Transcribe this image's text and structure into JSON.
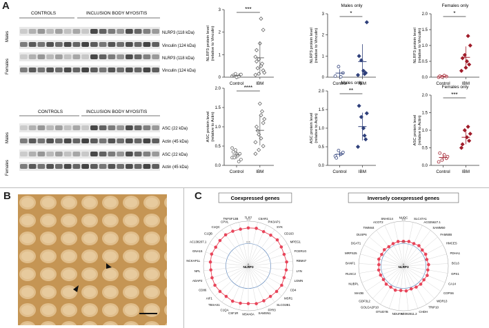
{
  "panel_letters": {
    "a": "A",
    "b": "B",
    "c": "C"
  },
  "blots": {
    "top": {
      "header_controls": "CONTROLS",
      "header_ibm": "INCLUSION BODY MYOSITIS",
      "group_males": "Males",
      "group_females": "Females",
      "bands": [
        "NLRP3 (118 kDa)",
        "Vinculin (124 kDa)",
        "NLRP3 (118 kDa)",
        "Vinculin (124 kDa)"
      ]
    },
    "bottom": {
      "header_controls": "CONTROLS",
      "header_ibm": "INCLUSION BODY MYOSITIS",
      "group_males": "Males",
      "group_females": "Females",
      "bands": [
        "ASC (22 kDa)",
        "Actin (45 kDa)",
        "ASC (22 kDa)",
        "Actin (45 kDa)"
      ]
    }
  },
  "chart_data": [
    {
      "type": "scatter",
      "title": "",
      "subtitle": "",
      "ylabel": "NLRP3 protein level\n(relative to Vinculin)",
      "categories": [
        "Control",
        "IBM"
      ],
      "ylim": [
        0,
        3
      ],
      "yticks": [
        "0",
        "1",
        "2",
        "3"
      ],
      "significance": "***",
      "color": "#666666",
      "series": [
        {
          "values": [
            0.05,
            0.1,
            0.02,
            0.15,
            0.08,
            0.12,
            0.03,
            0.0
          ]
        },
        {
          "values": [
            0.1,
            0.3,
            0.5,
            0.8,
            1.2,
            0.2,
            0.6,
            1.5,
            0.4,
            0.9,
            2.1,
            2.6,
            0.15,
            0.7
          ]
        }
      ]
    },
    {
      "type": "scatter",
      "title": "Males only",
      "subtitle": "",
      "ylabel": "NLRP3 protein level\n(relative to Vinculin)",
      "categories": [
        "Control",
        "IBM"
      ],
      "ylim": [
        0,
        3
      ],
      "yticks": [
        "0",
        "1",
        "2",
        "3"
      ],
      "significance": "*",
      "color": "#2e3f7a",
      "series": [
        {
          "values": [
            0.05,
            0.2,
            0.02,
            0.5
          ]
        },
        {
          "values": [
            0.1,
            0.2,
            0.3,
            0.8,
            1.0,
            2.6,
            0.15
          ]
        }
      ]
    },
    {
      "type": "scatter",
      "title": "Females only",
      "subtitle": "",
      "ylabel": "NLRP3 protein level\n(relative to Vinculin)",
      "categories": [
        "Control",
        "IBM"
      ],
      "ylim": [
        0,
        2
      ],
      "yticks": [
        "0.0",
        "0.5",
        "1.0",
        "1.5",
        "2.0"
      ],
      "significance": "*",
      "color": "#a01c2a",
      "series": [
        {
          "values": [
            0.0,
            0.02,
            0.05,
            0.01,
            0.03
          ]
        },
        {
          "values": [
            0.2,
            0.4,
            0.5,
            0.7,
            0.6,
            1.0,
            1.3,
            0.3
          ]
        }
      ]
    },
    {
      "type": "scatter",
      "title": "",
      "subtitle": "",
      "ylabel": "ASC protein level\n(relative to Actin)",
      "categories": [
        "Control",
        "IBM"
      ],
      "ylim": [
        0,
        2
      ],
      "yticks": [
        "0.0",
        "0.5",
        "1.0",
        "1.5",
        "2.0"
      ],
      "significance": "****",
      "color": "#666666",
      "series": [
        {
          "values": [
            0.2,
            0.3,
            0.25,
            0.4,
            0.35,
            0.15,
            0.1,
            0.3,
            0.2,
            0.45
          ]
        },
        {
          "values": [
            0.3,
            0.5,
            0.7,
            0.8,
            1.0,
            1.2,
            1.4,
            1.6,
            0.9,
            0.6,
            1.1,
            1.3,
            0.4
          ]
        }
      ]
    },
    {
      "type": "scatter",
      "title": "Males only",
      "subtitle": "",
      "ylabel": "ASC protein level\n(relative to Actin)",
      "categories": [
        "Control",
        "IBM"
      ],
      "ylim": [
        0,
        2
      ],
      "yticks": [
        "0.0",
        "0.5",
        "1.0",
        "1.5",
        "2.0"
      ],
      "significance": "**",
      "color": "#2e3f7a",
      "series": [
        {
          "values": [
            0.25,
            0.35,
            0.3,
            0.4,
            0.2
          ]
        },
        {
          "values": [
            0.5,
            0.7,
            1.0,
            1.3,
            1.6,
            1.4,
            0.8
          ]
        }
      ]
    },
    {
      "type": "scatter",
      "title": "Females only",
      "subtitle": "",
      "ylabel": "ASC protein level\n(relative to Actin)",
      "categories": [
        "Control",
        "IBM"
      ],
      "ylim": [
        0,
        2
      ],
      "yticks": [
        "0.0",
        "0.5",
        "1.0",
        "1.5",
        "2.0"
      ],
      "significance": "***",
      "color": "#a01c2a",
      "series": [
        {
          "values": [
            0.1,
            0.2,
            0.3,
            0.15,
            0.35,
            0.25
          ]
        },
        {
          "values": [
            0.5,
            0.7,
            0.8,
            1.0,
            0.6,
            0.9,
            1.1
          ]
        }
      ]
    }
  ],
  "radar": {
    "coexpressed": {
      "title": "Coexpressed genes",
      "center_label": "NLRP3",
      "rings": [
        "1.0",
        "0.5",
        "0"
      ],
      "genes": [
        "TLR7",
        "C5AR1",
        "PIK3AP1",
        "SYK",
        "CD163",
        "MPEG1",
        "FCER1G",
        "RBM47",
        "LYN",
        "LGMN",
        "CD4",
        "MSR1",
        "SLCO2B1",
        "FPR3",
        "SAMSN1",
        "MS4A6A",
        "CSF1R",
        "C1QA",
        "TBXAS1",
        "AIF1",
        "CD86",
        "ADAP2",
        "NPL",
        "NCKAP1L",
        "GNA15",
        "AC138207.1",
        "C1QB",
        "C1QC",
        "CPVL",
        "TNFSF13B"
      ],
      "values": [
        0.85,
        0.86,
        0.84,
        0.85,
        0.87,
        0.85,
        0.84,
        0.86,
        0.85,
        0.84,
        0.86,
        0.85,
        0.84,
        0.85,
        0.86,
        0.84,
        0.85,
        0.86,
        0.84,
        0.85,
        0.86,
        0.85,
        0.84,
        0.85,
        0.86,
        0.84,
        0.85,
        0.86,
        0.85,
        0.84
      ]
    },
    "inverse": {
      "title": "Inversely coexpressed genes",
      "center_label": "NLRP3",
      "rings": [
        "1.0",
        "0.5",
        "0"
      ],
      "genes": [
        "NUDC",
        "SLC47A1",
        "AC025627.1",
        "SAMM50",
        "FAM50B",
        "HMCES",
        "PDHA1",
        "BCL6",
        "GPS1",
        "CA14",
        "COPS6",
        "WDR13",
        "TRIP10",
        "CHDH",
        "AC092811.2",
        "NDUFS7",
        "OTUD7B",
        "GOLGA2P10",
        "GDF3L2",
        "MAOB",
        "NUBPL",
        "RUSC2",
        "BANF1",
        "MRPS25",
        "DGAT1",
        "DUSP6",
        "TIMM44",
        "ACOT2",
        "SNHG14"
      ],
      "values": [
        0.55,
        0.56,
        0.55,
        0.57,
        0.55,
        0.56,
        0.54,
        0.56,
        0.55,
        0.57,
        0.55,
        0.56,
        0.55,
        0.54,
        0.56,
        0.55,
        0.57,
        0.55,
        0.56,
        0.54,
        0.55,
        0.56,
        0.55,
        0.57,
        0.55,
        0.56,
        0.54,
        0.55,
        0.56
      ]
    }
  },
  "colors": {
    "radar_line": "#e8455a",
    "ring_blue": "#4a78b5",
    "males": "#2e3f7a",
    "females": "#a01c2a",
    "neutral": "#666666"
  }
}
